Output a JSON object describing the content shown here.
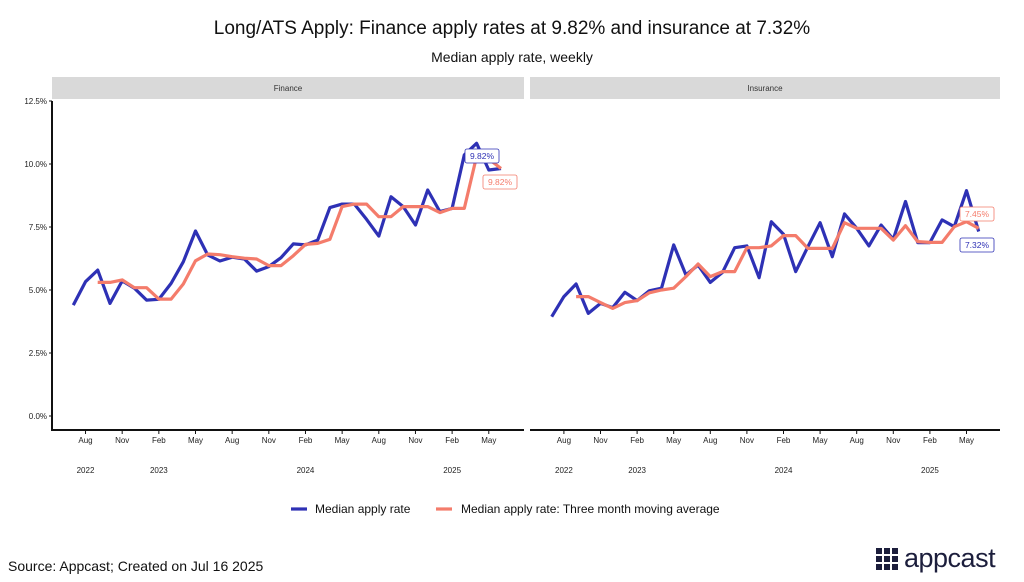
{
  "chart_data": [
    {
      "type": "line",
      "panel": "Finance",
      "x": [
        "2022-07",
        "2022-08",
        "2022-09",
        "2022-10",
        "2022-11",
        "2022-12",
        "2023-01",
        "2023-02",
        "2023-03",
        "2023-04",
        "2023-05",
        "2023-06",
        "2023-07",
        "2023-08",
        "2023-09",
        "2023-10",
        "2023-11",
        "2023-12",
        "2024-01",
        "2024-02",
        "2024-03",
        "2024-04",
        "2024-05",
        "2024-06",
        "2024-07",
        "2024-08",
        "2024-09",
        "2024-10",
        "2024-11",
        "2024-12",
        "2025-01",
        "2025-02",
        "2025-03",
        "2025-04",
        "2025-05",
        "2025-06"
      ],
      "series": [
        {
          "name": "Median apply rate",
          "color": "#2e31b5",
          "values": [
            4.4,
            5.33,
            5.79,
            4.47,
            5.36,
            5.07,
            4.6,
            4.63,
            5.26,
            6.12,
            7.34,
            6.39,
            6.15,
            6.3,
            6.23,
            5.75,
            5.93,
            6.28,
            6.83,
            6.79,
            6.98,
            8.27,
            8.41,
            8.41,
            7.8,
            7.14,
            8.7,
            8.31,
            7.58,
            8.97,
            8.11,
            8.24,
            10.36,
            10.82,
            9.76,
            9.82
          ]
        },
        {
          "name": "Median apply rate: Three month moving average",
          "color": "#f47c6b",
          "values": [
            null,
            null,
            5.3,
            5.3,
            5.4,
            5.09,
            5.09,
            4.64,
            4.64,
            5.24,
            6.16,
            6.43,
            6.4,
            6.32,
            6.26,
            6.23,
            5.97,
            5.97,
            6.36,
            6.81,
            6.85,
            7.01,
            8.31,
            8.41,
            8.41,
            7.91,
            7.91,
            8.31,
            8.31,
            8.31,
            8.07,
            8.24,
            8.24,
            10.3,
            10.2,
            9.82
          ]
        }
      ],
      "annotations": [
        {
          "series": 0,
          "text": "9.82%"
        },
        {
          "series": 1,
          "text": "9.82%"
        }
      ]
    },
    {
      "type": "line",
      "panel": "Insurance",
      "x": [
        "2022-07",
        "2022-08",
        "2022-09",
        "2022-10",
        "2022-11",
        "2022-12",
        "2023-01",
        "2023-02",
        "2023-03",
        "2023-04",
        "2023-05",
        "2023-06",
        "2023-07",
        "2023-08",
        "2023-09",
        "2023-10",
        "2023-11",
        "2023-12",
        "2024-01",
        "2024-02",
        "2024-03",
        "2024-04",
        "2024-05",
        "2024-06",
        "2024-07",
        "2024-08",
        "2024-09",
        "2024-10",
        "2024-11",
        "2024-12",
        "2025-01",
        "2025-02",
        "2025-03",
        "2025-04",
        "2025-05",
        "2025-06"
      ],
      "series": [
        {
          "name": "Median apply rate",
          "color": "#2e31b5",
          "values": [
            3.94,
            4.74,
            5.24,
            4.07,
            4.47,
            4.3,
            4.91,
            4.58,
            4.97,
            5.07,
            6.79,
            5.6,
            5.99,
            5.3,
            5.7,
            6.68,
            6.75,
            5.49,
            7.71,
            7.21,
            5.73,
            6.72,
            7.67,
            6.32,
            8.02,
            7.45,
            6.75,
            7.58,
            7.01,
            8.51,
            6.88,
            6.88,
            7.78,
            7.51,
            8.94,
            7.32
          ]
        },
        {
          "name": "Median apply rate: Three month moving average",
          "color": "#f47c6b",
          "values": [
            null,
            null,
            4.74,
            4.74,
            4.5,
            4.27,
            4.5,
            4.58,
            4.89,
            5.0,
            5.07,
            5.53,
            6.03,
            5.53,
            5.73,
            5.73,
            6.68,
            6.68,
            6.75,
            7.16,
            7.16,
            6.65,
            6.65,
            6.65,
            7.67,
            7.45,
            7.45,
            7.45,
            6.98,
            7.55,
            6.92,
            6.89,
            6.89,
            7.51,
            7.71,
            7.45
          ]
        }
      ],
      "annotations": [
        {
          "series": 0,
          "text": "7.32%"
        },
        {
          "series": 1,
          "text": "7.45%"
        }
      ]
    }
  ],
  "title": "Long/ATS Apply: Finance apply rates at 9.82% and insurance at 7.32%",
  "subtitle": "Median apply rate, weekly",
  "ylim": [
    0,
    12.5
  ],
  "y_ticks": [
    "0.0%",
    "2.5%",
    "5.0%",
    "7.5%",
    "10.0%",
    "12.5%"
  ],
  "x_month_ticks": [
    "Aug",
    "Nov",
    "Feb",
    "May",
    "Aug",
    "Nov",
    "Feb",
    "May",
    "Aug",
    "Nov",
    "Feb",
    "May"
  ],
  "x_year_ticks": [
    {
      "label": "2022",
      "month": "2022-08"
    },
    {
      "label": "2023",
      "month": "2023-02"
    },
    {
      "label": "2024",
      "month": "2024-02"
    },
    {
      "label": "2025",
      "month": "2025-02"
    }
  ],
  "legend": [
    "Median apply rate",
    "Median apply rate: Three month moving average"
  ],
  "legend_position": "bottom",
  "source": "Source: Appcast; Created on Jul 16 2025",
  "logo": "appcast"
}
